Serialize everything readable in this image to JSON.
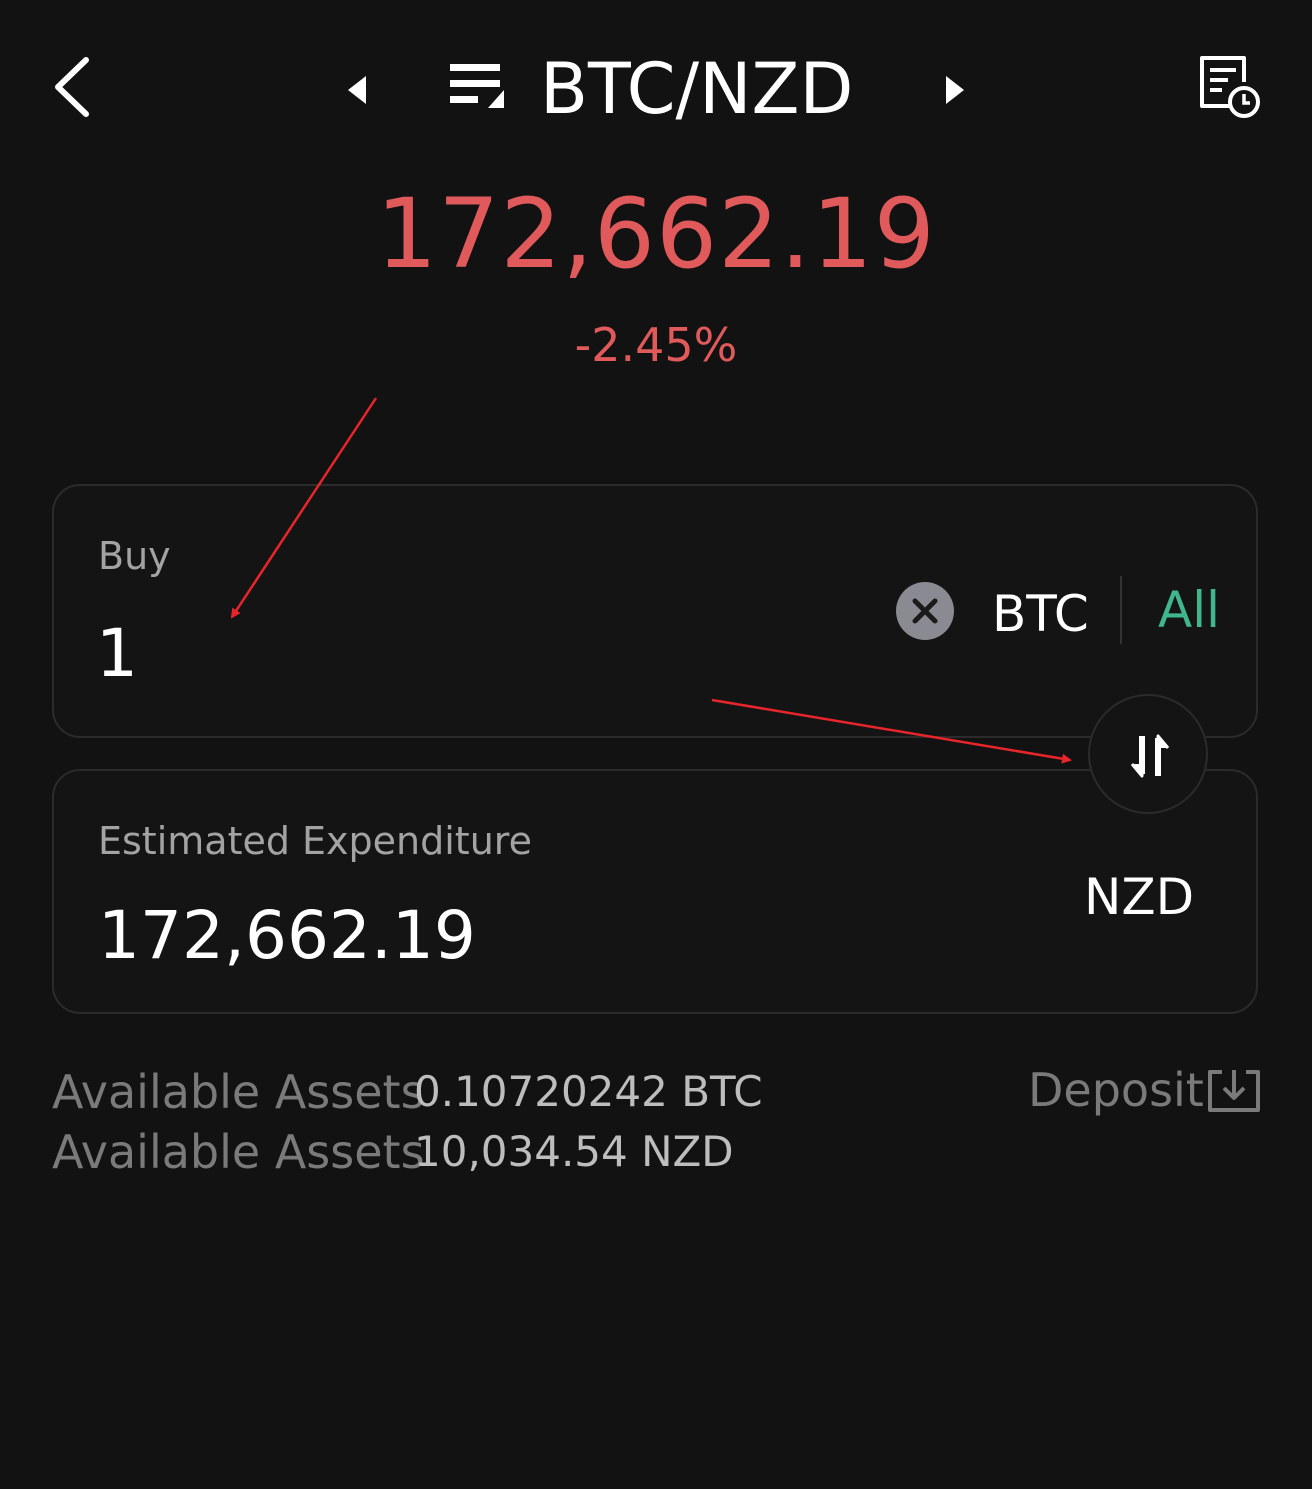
{
  "header": {
    "pair": "BTC/NZD",
    "icons": {
      "back": "chevron-left-icon",
      "prev": "triangle-left-icon",
      "next": "triangle-right-icon",
      "pair_menu": "menu-lines-icon",
      "history": "order-history-icon"
    }
  },
  "ticker": {
    "price": "172,662.19",
    "change": "-2.45%",
    "color": "#e05a5b"
  },
  "buy_card": {
    "label": "Buy",
    "amount": "1",
    "unit": "BTC",
    "all_label": "All",
    "all_color": "#3fb68b",
    "clear_icon": "clear-x-icon"
  },
  "swap": {
    "icon": "swap-arrows-icon"
  },
  "estimate_card": {
    "label": "Estimated Expenditure",
    "value": "172,662.19",
    "unit": "NZD"
  },
  "assets": {
    "rows": [
      {
        "label": "Available Assets",
        "value": "0.10720242 BTC"
      },
      {
        "label": "Available Assets",
        "value": "10,034.54 NZD"
      }
    ],
    "deposit_label": "Deposit",
    "deposit_icon": "download-tray-icon"
  },
  "annotations": {
    "color": "#e8252b"
  }
}
